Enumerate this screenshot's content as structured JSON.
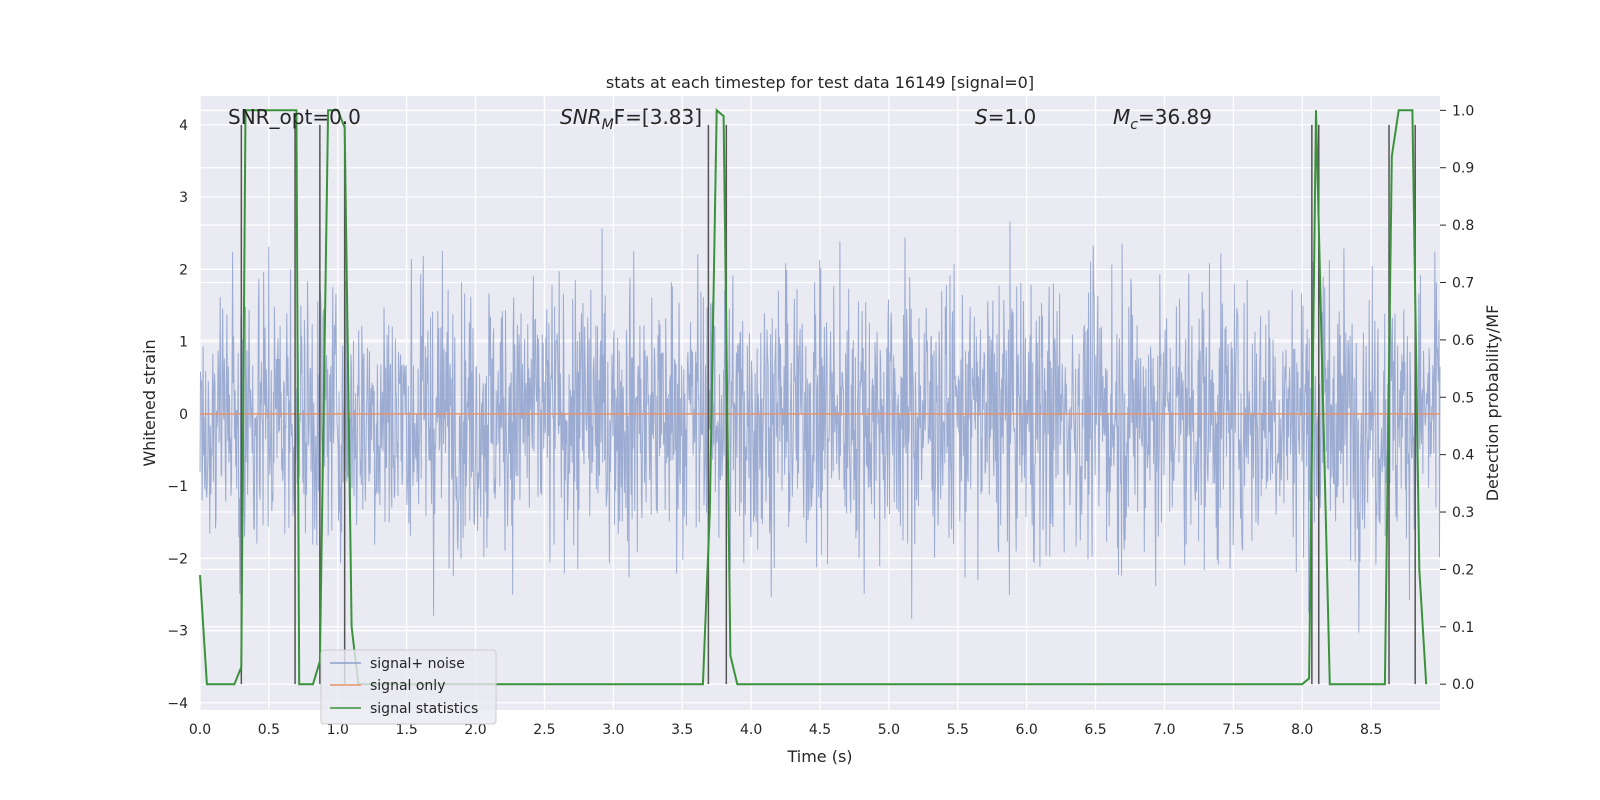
{
  "chart_data": {
    "type": "line",
    "title": "stats at each timestep for test data 16149 [signal=0]",
    "xlabel": "Time (s)",
    "ylabel": "Whitened strain",
    "y2label": "Detection probability/MF",
    "xlim": [
      0.0,
      9.0
    ],
    "ylim": [
      -4.1,
      4.4
    ],
    "y2lim": [
      -0.045,
      1.025
    ],
    "xticks": [
      "0.0",
      "0.5",
      "1.0",
      "1.5",
      "2.0",
      "2.5",
      "3.0",
      "3.5",
      "4.0",
      "4.5",
      "5.0",
      "5.5",
      "6.0",
      "6.5",
      "7.0",
      "7.5",
      "8.0",
      "8.5"
    ],
    "xtick_values": [
      0,
      0.5,
      1,
      1.5,
      2,
      2.5,
      3,
      3.5,
      4,
      4.5,
      5,
      5.5,
      6,
      6.5,
      7,
      7.5,
      8,
      8.5
    ],
    "yticks": [
      "−4",
      "−3",
      "−2",
      "−1",
      "0",
      "1",
      "2",
      "3",
      "4"
    ],
    "ytick_values": [
      -4,
      -3,
      -2,
      -1,
      0,
      1,
      2,
      3,
      4
    ],
    "y2ticks": [
      "0.0",
      "0.1",
      "0.2",
      "0.3",
      "0.4",
      "0.5",
      "0.6",
      "0.7",
      "0.8",
      "0.9",
      "1.0"
    ],
    "y2tick_values": [
      0,
      0.1,
      0.2,
      0.3,
      0.4,
      0.5,
      0.6,
      0.7,
      0.8,
      0.9,
      1.0
    ],
    "grid": true,
    "legend_position": "lower-left",
    "annotations": {
      "snr_opt": "SNR_opt=0.0",
      "snr_mf_sym": "SNR",
      "snr_mf_sub": "M",
      "snr_mf_rest": "F=[3.83]",
      "s_sym": "S",
      "s_rest": "=1.0",
      "mc_sym": "M",
      "mc_sub": "c",
      "mc_rest": "=36.89"
    },
    "series": [
      {
        "name": "signal+ noise",
        "color": "#8da0cb",
        "description_values": "whitened noise strain, roughly within -3.5 to 3.5",
        "noise_seed": 16149,
        "noise_std": 0.95
      },
      {
        "name": "signal only",
        "color": "#e5936d",
        "values_constant": 0.0
      },
      {
        "name": "signal statistics",
        "color": "#3a923a",
        "x": [
          0.0,
          0.05,
          0.1,
          0.2,
          0.25,
          0.3,
          0.33,
          0.37,
          0.4,
          0.5,
          0.6,
          0.7,
          0.72,
          0.77,
          0.82,
          0.87,
          0.93,
          1.0,
          1.05,
          1.1,
          1.15,
          1.2,
          1.3,
          1.5,
          2.0,
          2.5,
          2.9,
          3.0,
          3.5,
          3.65,
          3.7,
          3.75,
          3.8,
          3.85,
          3.9,
          4.0,
          4.1,
          4.5,
          5.0,
          5.5,
          6.0,
          7.0,
          8.0,
          8.05,
          8.1,
          8.15,
          8.2,
          8.3,
          8.6,
          8.65,
          8.7,
          8.75,
          8.8,
          8.85,
          8.9
        ],
        "y": [
          0.19,
          0.0,
          0.0,
          0.0,
          0.0,
          0.03,
          1.0,
          1.0,
          1.0,
          1.0,
          1.0,
          1.0,
          0.0,
          0.0,
          0.0,
          0.04,
          1.0,
          1.0,
          0.97,
          0.1,
          0.0,
          0.0,
          0.0,
          0.0,
          0.0,
          0.0,
          0.0,
          0.0,
          0.0,
          0.0,
          0.3,
          1.0,
          0.99,
          0.05,
          0.0,
          0.0,
          0.0,
          0.0,
          0.0,
          0.0,
          0.0,
          0.0,
          0.0,
          0.01,
          1.0,
          0.5,
          0.0,
          0.0,
          0.0,
          0.92,
          1.0,
          1.0,
          1.0,
          0.2,
          0.0
        ]
      }
    ],
    "vlines_x": [
      0.3,
      0.69,
      0.87,
      1.05,
      3.69,
      3.82,
      8.07,
      8.12,
      8.63,
      8.82
    ]
  }
}
